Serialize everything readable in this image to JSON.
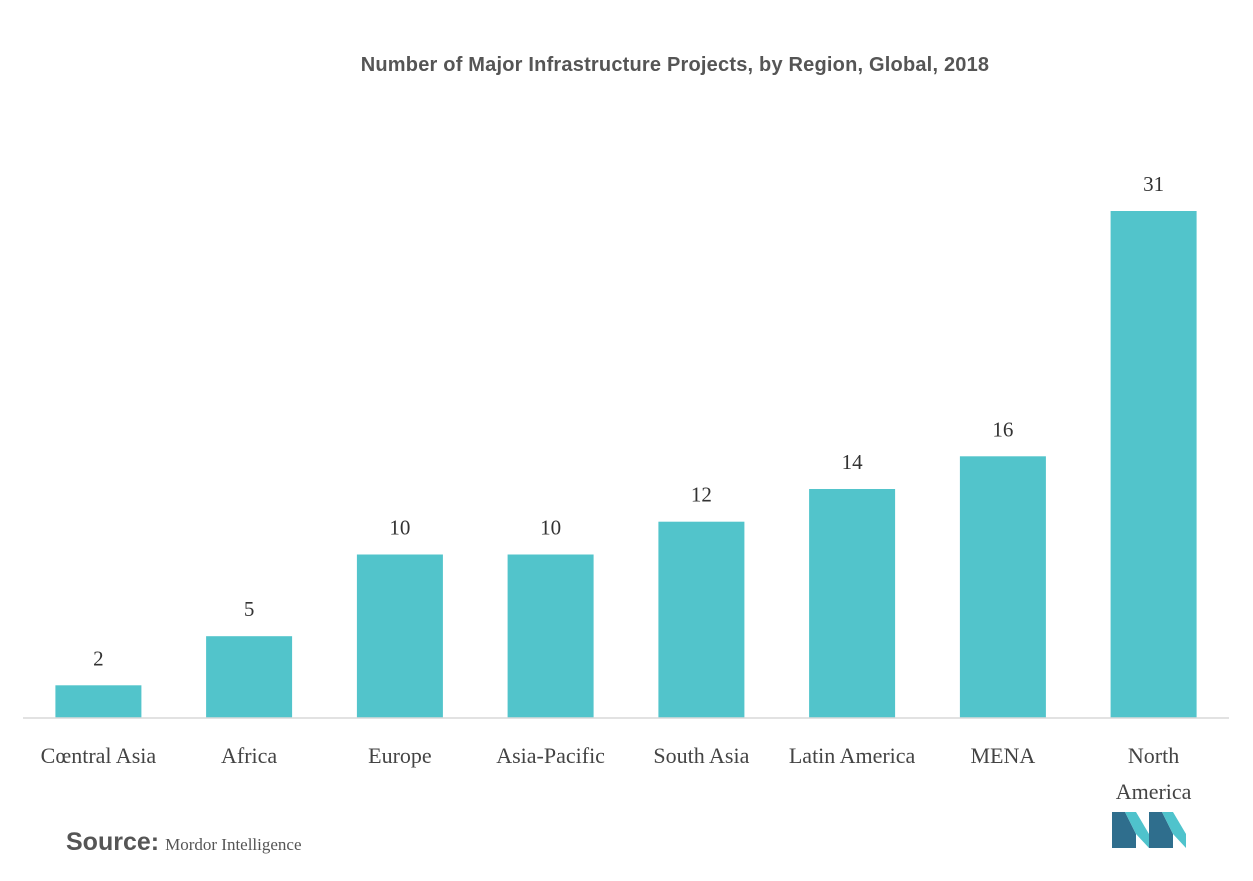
{
  "title": "Number of Major Infrastructure Projects, by Region, Global, 2018",
  "source": {
    "label": "Source:",
    "value": "Mordor Intelligence"
  },
  "colors": {
    "bar": "#52c4cb",
    "axis": "#d9d9d9",
    "logo_dark": "#2f6e8d",
    "logo_light": "#4fc3cc"
  },
  "chart_data": {
    "type": "bar",
    "title": "Number of Major Infrastructure Projects, by Region, Global, 2018",
    "categories": [
      "Cœntral Asia",
      "Africa",
      "Europe",
      "Asia-Pacific",
      "South Asia",
      "Latin America",
      "MENA",
      "North America"
    ],
    "values": [
      2,
      5,
      10,
      10,
      12,
      14,
      16,
      31
    ],
    "xlabel": "",
    "ylabel": "",
    "ylim": [
      0,
      31
    ],
    "grid": false,
    "data_labels": true,
    "legend": "none"
  }
}
